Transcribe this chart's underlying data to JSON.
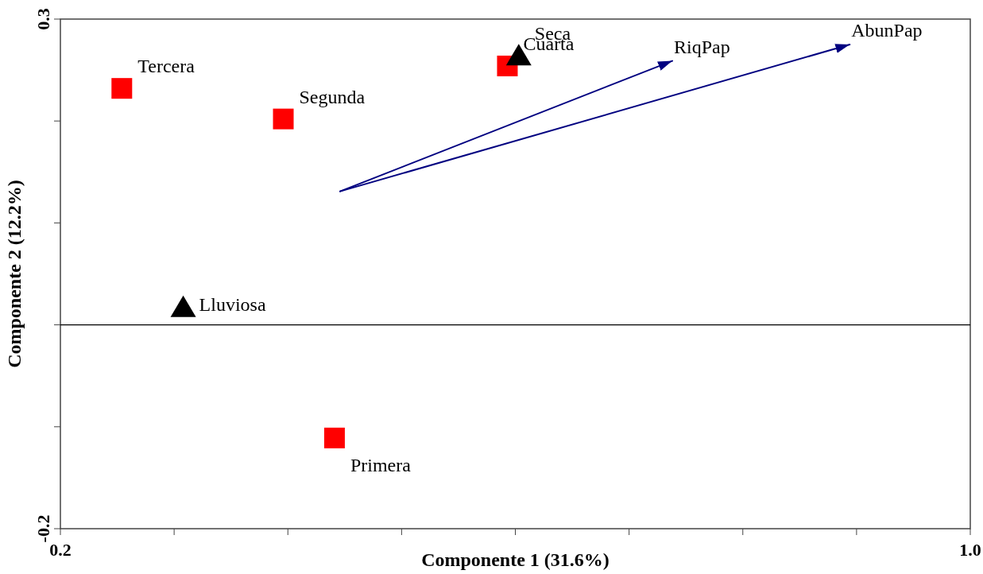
{
  "chart_data": {
    "type": "scatter",
    "xlabel": "Componente 1 (31.6%)",
    "ylabel": "Componente 2 (12.2%)",
    "xlim": [
      0.2,
      1.0
    ],
    "ylim": [
      -0.2,
      0.3
    ],
    "xticks": [
      0.2,
      {
        "value": 0.3,
        "label": null
      },
      {
        "value": 0.4,
        "label": null
      },
      {
        "value": 0.5,
        "label": null
      },
      {
        "value": 0.6,
        "label": null
      },
      {
        "value": 0.7,
        "label": null
      },
      {
        "value": 0.8,
        "label": null
      },
      {
        "value": 0.9,
        "label": null
      },
      {
        "value": 1.0,
        "label": "1.0"
      }
    ],
    "yticks": [
      {
        "value": -0.2,
        "label": "-0.2"
      },
      {
        "value": -0.1,
        "label": null
      },
      {
        "value": 0,
        "label": null
      },
      {
        "value": 0.1,
        "label": null
      },
      {
        "value": 0.2,
        "label": null
      },
      0.3
    ],
    "ref_lines": [
      {
        "axis": "y",
        "value": 0,
        "color": "#000000"
      }
    ],
    "series": [
      {
        "marker": "square",
        "color": "#ff0000",
        "x": [
          0.254,
          0.396,
          0.593,
          0.441
        ],
        "values": [
          0.232,
          0.202,
          0.254,
          -0.111
        ]
      },
      {
        "marker": "triangle",
        "color": "#000000",
        "x": [
          0.308,
          0.603
        ],
        "values": [
          0.017,
          0.264
        ]
      },
      {
        "type": "line",
        "name": "RiqPap",
        "color": "#000080",
        "line_style": "solid",
        "x": [
          0.446,
          0.738
        ],
        "values": [
          0.131,
          0.259
        ]
      },
      {
        "type": "line",
        "name": "AbunPap",
        "color": "#000080",
        "line_style": "solid",
        "x": [
          0.446,
          0.894
        ],
        "values": [
          0.131,
          0.275
        ]
      }
    ],
    "annotations": [
      {
        "text": "Tercera",
        "x": 0.254,
        "y": 0.232
      },
      {
        "text": "Segunda",
        "x": 0.396,
        "y": 0.202
      },
      {
        "text": "Cuarta",
        "x": 0.593,
        "y": 0.254
      },
      {
        "text": "Primera",
        "x": 0.441,
        "y": -0.111
      },
      {
        "text": "Lluviosa",
        "x": 0.308,
        "y": 0.017
      },
      {
        "text": "Seca",
        "x": 0.603,
        "y": 0.264
      }
    ]
  }
}
